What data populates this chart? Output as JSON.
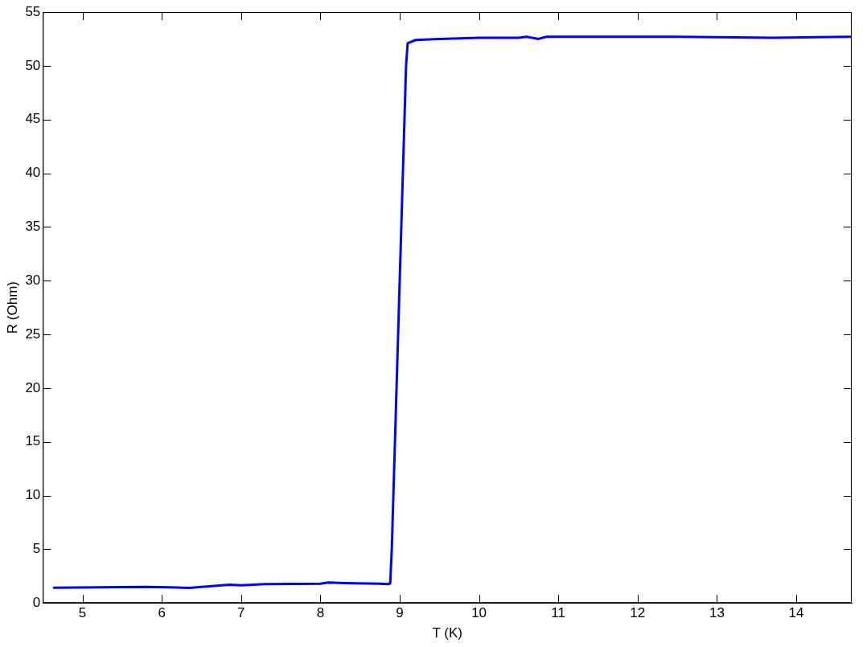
{
  "chart_data": {
    "type": "line",
    "xlabel": "T (K)",
    "ylabel": "R (Ohm)",
    "series": [
      {
        "color": "#0000ff",
        "x": [
          4.64,
          5.2,
          5.8,
          6.1,
          6.35,
          6.6,
          6.85,
          7.0,
          7.3,
          8.0,
          8.1,
          8.3,
          8.75,
          8.85,
          8.88,
          8.9,
          9.08,
          9.1,
          9.2,
          9.5,
          10.0,
          10.5,
          10.6,
          10.75,
          10.85,
          11.5,
          12.5,
          13.7,
          14.69
        ],
        "values": [
          1.42,
          1.45,
          1.5,
          1.45,
          1.4,
          1.55,
          1.7,
          1.65,
          1.75,
          1.8,
          1.9,
          1.85,
          1.8,
          1.75,
          1.8,
          5,
          50,
          52.1,
          52.4,
          52.5,
          52.6,
          52.6,
          52.7,
          52.5,
          52.7,
          52.7,
          52.7,
          52.6,
          52.7
        ]
      }
    ],
    "xlim": [
      4.5,
      14.7
    ],
    "xticks": [
      5,
      6,
      7,
      8,
      9,
      10,
      11,
      12,
      13,
      14
    ],
    "ylim": [
      0,
      55
    ],
    "yticks": [
      0,
      5,
      10,
      15,
      20,
      25,
      30,
      35,
      40,
      45,
      50,
      55
    ],
    "marker": "none",
    "line_style": "solid",
    "legend": false,
    "grid": false
  }
}
